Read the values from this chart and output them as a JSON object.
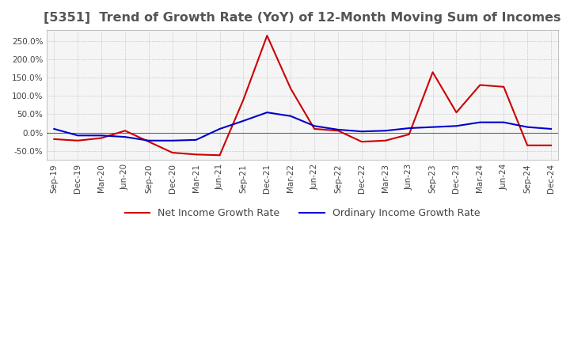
{
  "title": "[5351]  Trend of Growth Rate (YoY) of 12-Month Moving Sum of Incomes",
  "title_fontsize": 11.5,
  "ylim": [
    -75,
    280
  ],
  "yticks": [
    -50,
    0,
    50,
    100,
    150,
    200,
    250
  ],
  "background_color": "#ffffff",
  "plot_bg_color": "#f5f5f5",
  "grid_color": "#aaaaaa",
  "ordinary_color": "#0000cc",
  "net_color": "#cc0000",
  "x_labels": [
    "Sep-19",
    "Dec-19",
    "Mar-20",
    "Jun-20",
    "Sep-20",
    "Dec-20",
    "Mar-21",
    "Jun-21",
    "Sep-21",
    "Dec-21",
    "Mar-22",
    "Jun-22",
    "Sep-22",
    "Dec-22",
    "Mar-23",
    "Jun-23",
    "Sep-23",
    "Dec-23",
    "Mar-24",
    "Jun-24",
    "Sep-24",
    "Dec-24"
  ],
  "ordinary_income_growth": [
    10,
    -8,
    -8,
    -12,
    -22,
    -22,
    -20,
    10,
    32,
    55,
    45,
    18,
    8,
    3,
    5,
    12,
    15,
    18,
    28,
    28,
    15,
    10
  ],
  "net_income_growth": [
    -18,
    -22,
    -15,
    5,
    -25,
    -55,
    -60,
    -62,
    90,
    265,
    120,
    10,
    5,
    -25,
    -22,
    -5,
    165,
    55,
    130,
    125,
    -35,
    -35
  ]
}
